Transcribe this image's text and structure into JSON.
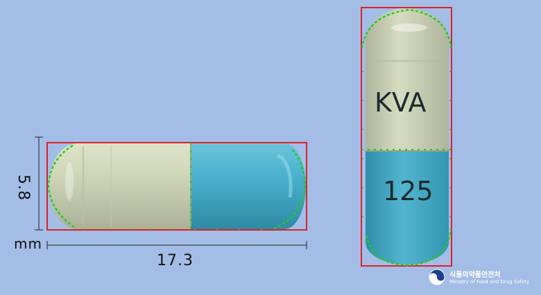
{
  "dimensions": {
    "height_label": "5.8",
    "unit_label": "mm",
    "length_label": "17.3"
  },
  "imprints": {
    "side_1": "KVA",
    "side_2": "125"
  },
  "logo": {
    "korean": "식품의약품안전처",
    "english": "Ministry of Food and Drug Safety"
  },
  "colors": {
    "background": "#a3bde6",
    "cap": "#c8d1b1",
    "body": "#45abc8",
    "outline": "#e0202a",
    "contour": "#22cc22"
  }
}
